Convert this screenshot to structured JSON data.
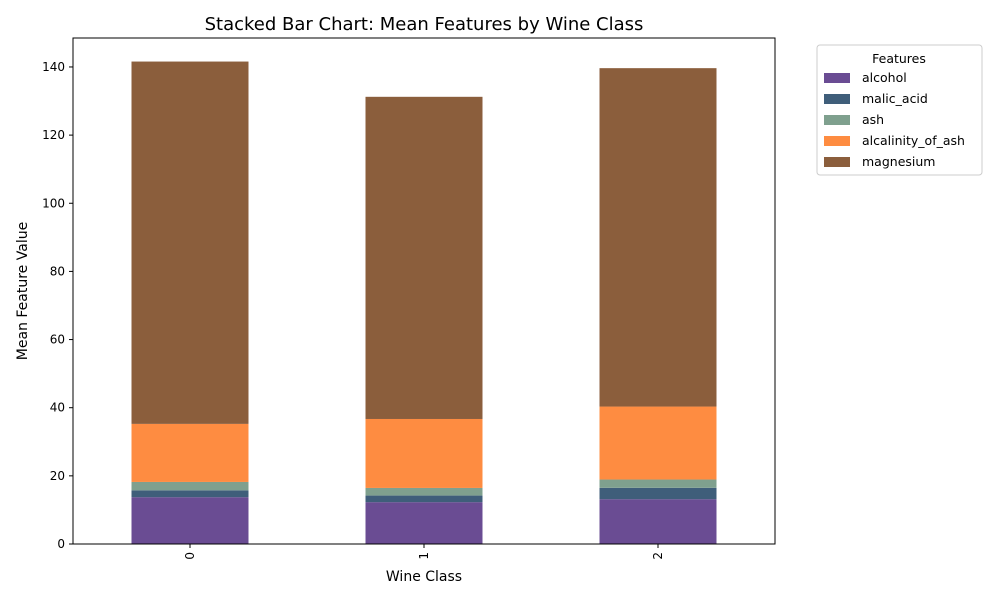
{
  "chart_data": {
    "type": "bar",
    "stacked": true,
    "title": "Stacked Bar Chart: Mean Features by Wine Class",
    "xlabel": "Wine Class",
    "ylabel": "Mean Feature Value",
    "categories": [
      "0",
      "1",
      "2"
    ],
    "ylim": [
      0,
      148.5
    ],
    "yticks": [
      0,
      20,
      40,
      60,
      80,
      100,
      120,
      140
    ],
    "legend": {
      "title": "Features",
      "placement": "outside-right-top"
    },
    "grid": false,
    "series": [
      {
        "name": "alcohol",
        "color": "#6a4c93",
        "values": [
          13.74,
          12.28,
          13.15
        ]
      },
      {
        "name": "malic_acid",
        "color": "#3f5e7a",
        "values": [
          2.01,
          1.93,
          3.33
        ]
      },
      {
        "name": "ash",
        "color": "#7fa08e",
        "values": [
          2.46,
          2.24,
          2.44
        ]
      },
      {
        "name": "alcalinity_of_ash",
        "color": "#fe8c41",
        "values": [
          17.04,
          20.24,
          21.42
        ]
      },
      {
        "name": "magnesium",
        "color": "#8b5e3c",
        "values": [
          106.34,
          94.55,
          99.31
        ]
      }
    ]
  }
}
